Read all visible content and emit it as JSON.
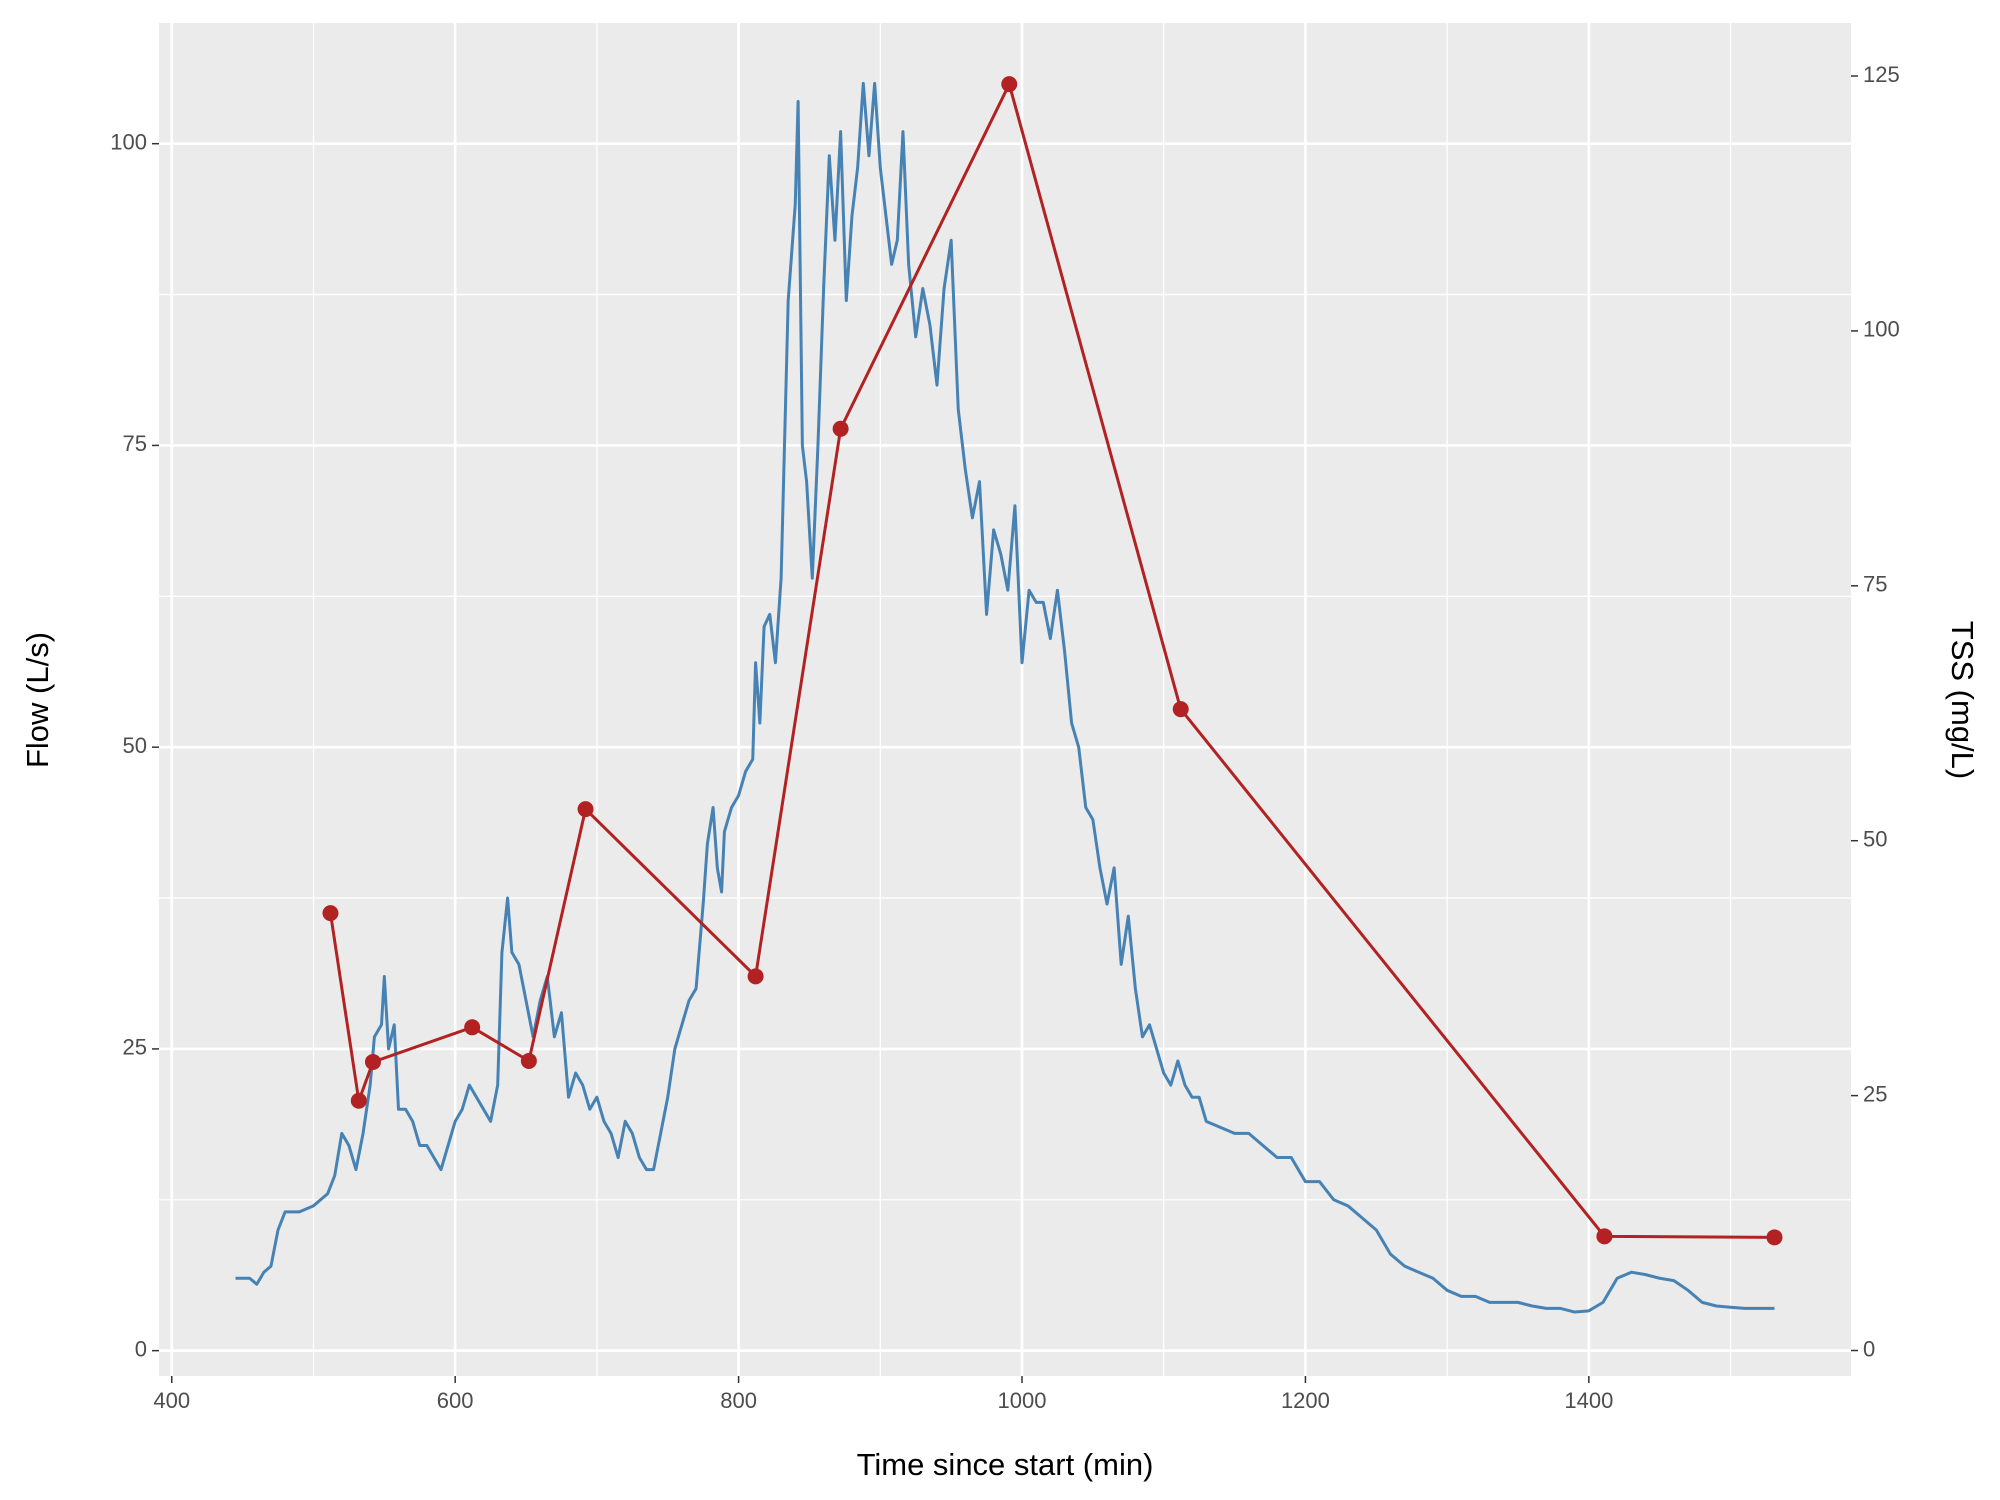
{
  "chart_data": {
    "type": "line",
    "xlabel": "Time since start (min)",
    "ylabel": "Flow (L/s)",
    "y2label": "TSS (mg/L)",
    "xlim": [
      391,
      1585
    ],
    "ylim": [
      -2.1,
      110
    ],
    "y2lim": [
      -2.5,
      130.2
    ],
    "xticks": [
      400,
      600,
      800,
      1000,
      1200,
      1400
    ],
    "yticks": [
      0,
      25,
      50,
      75,
      100
    ],
    "y2ticks": [
      0,
      25,
      50,
      75,
      100,
      125
    ],
    "x_minor_ticks": [
      500,
      700,
      900,
      1100,
      1300,
      1500
    ],
    "y_minor_ticks": [
      12.5,
      37.5,
      62.5,
      87.5
    ],
    "grid": true,
    "background": "#ebebeb",
    "series": [
      {
        "color": "#4682b4",
        "x": [
          445,
          455,
          460,
          465,
          470,
          475,
          480,
          490,
          500,
          510,
          515,
          520,
          525,
          530,
          535,
          540,
          543,
          548,
          550,
          553,
          557,
          560,
          565,
          570,
          575,
          580,
          585,
          590,
          595,
          600,
          605,
          610,
          615,
          620,
          625,
          630,
          633,
          637,
          640,
          645,
          650,
          655,
          660,
          665,
          670,
          675,
          680,
          685,
          690,
          695,
          700,
          705,
          710,
          715,
          720,
          725,
          730,
          735,
          740,
          745,
          750,
          755,
          760,
          765,
          770,
          775,
          778,
          782,
          785,
          788,
          790,
          795,
          800,
          805,
          810,
          812,
          815,
          818,
          822,
          826,
          830,
          835,
          840,
          842,
          845,
          848,
          852,
          856,
          860,
          864,
          868,
          872,
          876,
          880,
          884,
          888,
          892,
          896,
          900,
          904,
          908,
          912,
          916,
          920,
          925,
          930,
          935,
          940,
          945,
          950,
          955,
          960,
          965,
          970,
          975,
          980,
          985,
          990,
          995,
          1000,
          1005,
          1010,
          1015,
          1020,
          1025,
          1030,
          1035,
          1040,
          1045,
          1050,
          1055,
          1060,
          1065,
          1070,
          1075,
          1080,
          1085,
          1090,
          1095,
          1100,
          1105,
          1110,
          1115,
          1120,
          1125,
          1130,
          1140,
          1150,
          1160,
          1170,
          1180,
          1190,
          1200,
          1210,
          1220,
          1230,
          1240,
          1250,
          1260,
          1270,
          1280,
          1290,
          1300,
          1310,
          1320,
          1330,
          1340,
          1350,
          1360,
          1370,
          1380,
          1390,
          1400,
          1410,
          1415,
          1420,
          1430,
          1440,
          1450,
          1460,
          1470,
          1480,
          1490,
          1500,
          1510,
          1520,
          1531
        ],
        "values": [
          6,
          6,
          5.5,
          6.5,
          7,
          10,
          11.5,
          11.5,
          12,
          13,
          14.5,
          18,
          17,
          15,
          18,
          22,
          26,
          27,
          31,
          25,
          27,
          20,
          20,
          19,
          17,
          17,
          16,
          15,
          17,
          19,
          20,
          22,
          21,
          20,
          19,
          22,
          33,
          37.5,
          33,
          32,
          29,
          26,
          29,
          31,
          26,
          28,
          21,
          23,
          22,
          20,
          21,
          19,
          18,
          16,
          19,
          18,
          16,
          15,
          15,
          18,
          21,
          25,
          27,
          29,
          30,
          37,
          42,
          45,
          40,
          38,
          43,
          45,
          46,
          48,
          49,
          57,
          52,
          60,
          61,
          57,
          64,
          87,
          95,
          103.5,
          75,
          72,
          64,
          75,
          88,
          99,
          92,
          101,
          87,
          94,
          98,
          105,
          99,
          105,
          98,
          94,
          90,
          92,
          101,
          90,
          84,
          88,
          85,
          80,
          88,
          92,
          78,
          73,
          69,
          72,
          61,
          68,
          66,
          63,
          70,
          57,
          63,
          62,
          62,
          59,
          63,
          58,
          52,
          50,
          45,
          44,
          40,
          37,
          40,
          32,
          36,
          30,
          26,
          27,
          25,
          23,
          22,
          24,
          22,
          21,
          21,
          19,
          18.5,
          18,
          18,
          17,
          16,
          16,
          14,
          14,
          12.5,
          12,
          11,
          10,
          8,
          7,
          6.5,
          6,
          5,
          4.5,
          4.5,
          4,
          4,
          4,
          3.7,
          3.5,
          3.5,
          3.2,
          3.3,
          4,
          5,
          6,
          6.5,
          6.3,
          6,
          5.8,
          5,
          4,
          3.7,
          3.6,
          3.5,
          3.5,
          3.5
        ]
      },
      {
        "color": "#b22222",
        "axis": "y2",
        "markers": true,
        "x": [
          512,
          532,
          542,
          612,
          652,
          692,
          812,
          872,
          991,
          1112,
          1411,
          1531
        ],
        "values": [
          42.9,
          24.5,
          28.3,
          31.7,
          28.4,
          53.1,
          36.7,
          90.4,
          124.2,
          62.9,
          11.2,
          11.1
        ]
      }
    ]
  }
}
